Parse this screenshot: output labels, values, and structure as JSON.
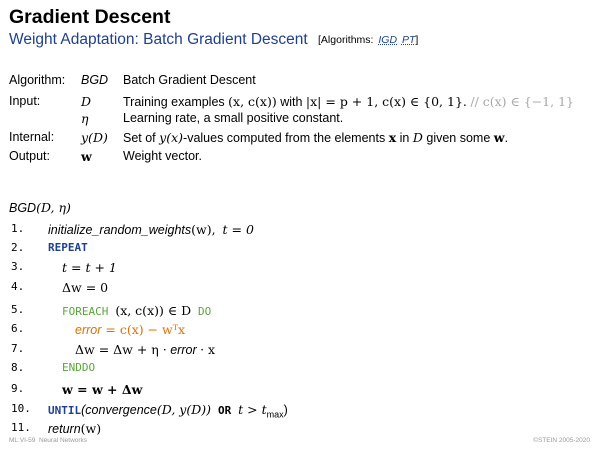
{
  "title": "Gradient Descent",
  "subtitle": {
    "text": "Weight Adaptation: Batch Gradient Descent",
    "algorithms_label": "[Algorithms:",
    "links": [
      "IGD",
      "PT"
    ],
    "close": "]"
  },
  "definitions": {
    "algorithm": {
      "key": "Algorithm:",
      "symbol": "BGD",
      "desc": "Batch Gradient Descent"
    },
    "input": {
      "key": "Input:",
      "symbol": "D",
      "desc_prefix": "Training examples",
      "desc_pair": "(x, c(x))",
      "desc_with": "with",
      "desc_cond": "|x| = p + 1,  c(x) ∈ {0, 1}.",
      "desc_comment": "// c(x) ∈ {−1, 1}"
    },
    "eta": {
      "symbol": "η",
      "desc": "Learning rate, a small positive constant."
    },
    "internal": {
      "key": "Internal:",
      "symbol": "y(D)",
      "desc_prefix": "Set of",
      "desc_mid": "y(x)",
      "desc_mid2": "-values computed from the elements",
      "desc_x": "x",
      "desc_in": "in",
      "desc_D": "D",
      "desc_given": "given some",
      "desc_w": "w",
      "desc_end": "."
    },
    "output": {
      "key": "Output:",
      "symbol": "w",
      "desc": "Weight vector."
    }
  },
  "algorithm_signature": {
    "name": "BGD",
    "args": "(D, η)"
  },
  "steps": [
    {
      "num": "1.",
      "fn": "initialize_random_weights",
      "args": "(w),",
      "extra": "t = 0"
    },
    {
      "num": "2.",
      "kw": "REPEAT"
    },
    {
      "num": "3.",
      "math": "t = t + 1"
    },
    {
      "num": "4.",
      "math": "Δw = 0"
    },
    {
      "num": "5.",
      "kw": "FOREACH",
      "mid": "(x, c(x)) ∈ D",
      "kw2": "DO"
    },
    {
      "num": "6.",
      "lhs": "error",
      "rhs": " = c(x) − wᵀx"
    },
    {
      "num": "7.",
      "math": "Δw = Δw + η ·",
      "it": "error",
      "tail": "· x"
    },
    {
      "num": "8.",
      "kw": "ENDDO"
    },
    {
      "num": "9.",
      "math": "w = w + Δw"
    },
    {
      "num": "10.",
      "kw": "UNTIL",
      "fn": "(convergence",
      "args": "(D, y(D))",
      "kw2": "OR",
      "tail": "t > t",
      "sub": "max",
      "close": ")"
    },
    {
      "num": "11.",
      "fn": "return",
      "args": "(w)"
    }
  ],
  "footer": {
    "left": "ML:VI-59",
    "left2": "Neural Networks",
    "right": "©STEIN 2005-2020"
  }
}
